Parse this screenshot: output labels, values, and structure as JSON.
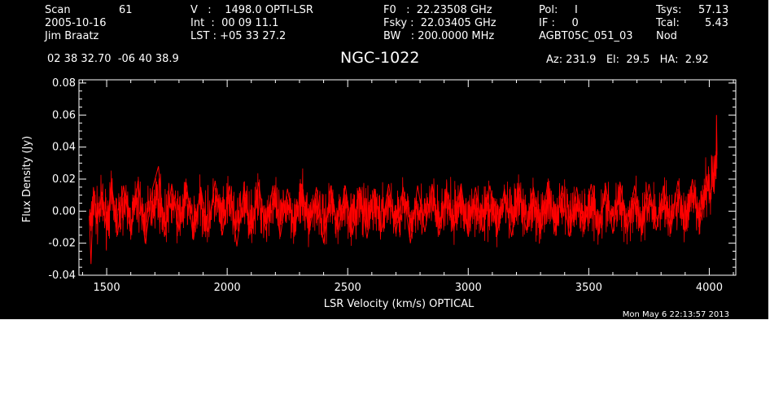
{
  "header": {
    "scan_label": "Scan",
    "scan_number": "61",
    "date": "2005-10-16",
    "observer": "Jim Braatz",
    "coords": "02 38 32.70  -06 40 38.9",
    "velocity": "V   :    1498.0 OPTI-LSR",
    "int_time": "Int  :  00 09 11.1",
    "lst": "LST : +05 33 27.2",
    "f0": "F0   :  22.23508 GHz",
    "fsky": "Fsky :  22.03405 GHz",
    "bw": "BW   : 200.0000 MHz",
    "pol": "Pol:     I",
    "if": "IF :     0",
    "project": "AGBT05C_051_03",
    "tsys_label": "Tsys:",
    "tsys_value": "57.13",
    "tcal_label": "Tcal:",
    "tcal_value": "5.43",
    "mode": "Nod",
    "source": "NGC-1022",
    "pointing": "Az: 231.9   El:  29.5   HA:  2.92",
    "timestamp": "Mon May  6 22:13:57 2013"
  },
  "colors": {
    "background": "#000000",
    "foreground": "#ffffff",
    "series": "#ff0000"
  },
  "chart_data": {
    "type": "line",
    "xlabel": "LSR Velocity (km/s) OPTICAL",
    "ylabel": "Flux Density (Jy)",
    "xlim": [
      1385,
      4110
    ],
    "ylim": [
      -0.04,
      0.082
    ],
    "xticks": [
      1500,
      2000,
      2500,
      3000,
      3500,
      4000
    ],
    "yticks": [
      -0.04,
      -0.02,
      0.0,
      0.02,
      0.04,
      0.06,
      0.08
    ],
    "ytick_labels": [
      "-0.04",
      "-0.02",
      "0.00",
      "0.02",
      "0.04",
      "0.06",
      "0.08"
    ],
    "grid": false,
    "series": [
      {
        "x_start": 1428,
        "x_end": 4032,
        "points": [
          [
            1428,
            -0.003
          ],
          [
            1435,
            -0.033
          ],
          [
            1445,
            0.015
          ],
          [
            1460,
            -0.008
          ],
          [
            1480,
            0.012
          ],
          [
            1500,
            -0.012
          ],
          [
            1520,
            0.018
          ],
          [
            1545,
            -0.015
          ],
          [
            1570,
            0.016
          ],
          [
            1600,
            -0.014
          ],
          [
            1630,
            0.019
          ],
          [
            1660,
            -0.02
          ],
          [
            1690,
            0.014
          ],
          [
            1715,
            0.028
          ],
          [
            1740,
            -0.016
          ],
          [
            1770,
            0.017
          ],
          [
            1800,
            -0.012
          ],
          [
            1830,
            0.018
          ],
          [
            1860,
            -0.018
          ],
          [
            1890,
            0.015
          ],
          [
            1920,
            -0.013
          ],
          [
            1950,
            0.019
          ],
          [
            1980,
            -0.015
          ],
          [
            2010,
            0.016
          ],
          [
            2040,
            -0.022
          ],
          [
            2070,
            0.015
          ],
          [
            2100,
            -0.014
          ],
          [
            2130,
            0.018
          ],
          [
            2160,
            -0.012
          ],
          [
            2190,
            0.016
          ],
          [
            2220,
            -0.016
          ],
          [
            2250,
            0.014
          ],
          [
            2280,
            -0.012
          ],
          [
            2310,
            0.017
          ],
          [
            2340,
            -0.014
          ],
          [
            2370,
            0.015
          ],
          [
            2400,
            -0.02
          ],
          [
            2430,
            0.016
          ],
          [
            2460,
            -0.013
          ],
          [
            2490,
            0.016
          ],
          [
            2520,
            -0.015
          ],
          [
            2550,
            0.015
          ],
          [
            2580,
            -0.017
          ],
          [
            2610,
            0.014
          ],
          [
            2640,
            -0.013
          ],
          [
            2670,
            0.017
          ],
          [
            2700,
            -0.014
          ],
          [
            2730,
            0.015
          ],
          [
            2760,
            -0.02
          ],
          [
            2790,
            0.016
          ],
          [
            2820,
            -0.013
          ],
          [
            2850,
            0.017
          ],
          [
            2880,
            -0.015
          ],
          [
            2910,
            0.014
          ],
          [
            2940,
            -0.012
          ],
          [
            2970,
            0.017
          ],
          [
            3000,
            -0.016
          ],
          [
            3030,
            0.015
          ],
          [
            3060,
            -0.013
          ],
          [
            3090,
            0.016
          ],
          [
            3120,
            -0.015
          ],
          [
            3150,
            0.014
          ],
          [
            3180,
            -0.016
          ],
          [
            3210,
            0.017
          ],
          [
            3240,
            -0.012
          ],
          [
            3270,
            0.015
          ],
          [
            3300,
            -0.014
          ],
          [
            3330,
            0.018
          ],
          [
            3360,
            -0.013
          ],
          [
            3390,
            0.016
          ],
          [
            3420,
            -0.016
          ],
          [
            3450,
            0.015
          ],
          [
            3480,
            -0.013
          ],
          [
            3510,
            0.017
          ],
          [
            3540,
            -0.015
          ],
          [
            3570,
            0.016
          ],
          [
            3600,
            -0.014
          ],
          [
            3630,
            0.018
          ],
          [
            3660,
            -0.013
          ],
          [
            3690,
            0.016
          ],
          [
            3720,
            -0.015
          ],
          [
            3750,
            0.017
          ],
          [
            3780,
            -0.012
          ],
          [
            3810,
            0.016
          ],
          [
            3840,
            -0.014
          ],
          [
            3870,
            0.019
          ],
          [
            3900,
            -0.012
          ],
          [
            3930,
            0.02
          ],
          [
            3960,
            -0.01
          ],
          [
            3990,
            0.022
          ],
          [
            4005,
            0.005
          ],
          [
            4012,
            0.028
          ],
          [
            4018,
            0.012
          ],
          [
            4024,
            0.035
          ],
          [
            4028,
            0.02
          ],
          [
            4030,
            0.06
          ],
          [
            4032,
            0.035
          ]
        ]
      }
    ]
  }
}
